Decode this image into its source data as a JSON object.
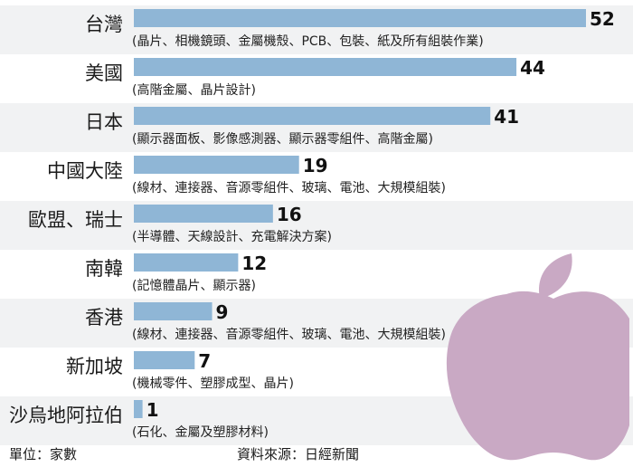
{
  "chart_data": {
    "type": "bar",
    "orientation": "horizontal",
    "categories": [
      "台灣",
      "美國",
      "日本",
      "中國大陸",
      "歐盟、瑞士",
      "南韓",
      "香港",
      "新加坡",
      "沙烏地阿拉伯"
    ],
    "values": [
      52,
      44,
      41,
      19,
      16,
      12,
      9,
      7,
      1
    ],
    "details": [
      "(晶片、相機鏡頭、金屬機殼、PCB、包裝、紙及所有組裝作業)",
      "(高階金屬、晶片設計)",
      "(顯示器面板、影像感測器、顯示器零組件、高階金屬)",
      "(線材、連接器、音源零組件、玻璃、電池、大規模組裝)",
      "(半導體、天線設計、充電解決方案)",
      "(記憶體晶片、顯示器)",
      "(線材、連接器、音源零組件、玻璃、電池、大規模組裝)",
      "(機械零件、塑膠成型、晶片)",
      "(石化、金屬及塑膠材料)"
    ],
    "bar_color": "#8fb6d6",
    "xlim": [
      0,
      52
    ],
    "grid": false,
    "legend": "none"
  },
  "footer": {
    "unit": "單位：家數",
    "source": "資料來源：日經新聞"
  },
  "decoration": {
    "logo": "apple-logo",
    "logo_color": "#c9a9c4"
  }
}
